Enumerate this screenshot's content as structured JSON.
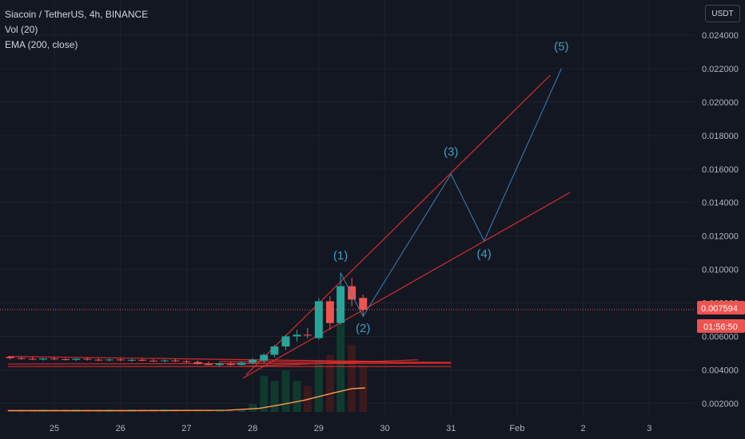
{
  "header": {
    "symbol_line": "Siacoin / TetherUS, 4h, BINANCE",
    "indicator_volume": "Vol (20)",
    "indicator_ema": "EMA (200, close)",
    "currency_button": "USDT"
  },
  "colors": {
    "background": "#131722",
    "grid": "#1e222d",
    "up_candle": "#26a69a",
    "down_candle": "#ef5350",
    "up_volume": "#0f3b2e",
    "down_volume": "#3a1a1d",
    "ema": "#ff9a4d",
    "channel_lines": "#d62c2c",
    "wave_path": "#3e7fb5",
    "wave_labels": "#3e9fbf",
    "price_line": "#ef5350"
  },
  "price_tag": {
    "last_price": "0.007594",
    "countdown": "01:56:50"
  },
  "chart_data": {
    "type": "candlestick",
    "symbol": "Siacoin / TetherUS",
    "timeframe": "4h",
    "exchange": "BINANCE",
    "y_axis": {
      "range": [
        0.0013,
        0.0261
      ],
      "ticks": [
        "0.002000",
        "0.004000",
        "0.006000",
        "0.008000",
        "0.010000",
        "0.012000",
        "0.014000",
        "0.016000",
        "0.018000",
        "0.020000",
        "0.022000",
        "0.024000"
      ],
      "tick_values": [
        0.002,
        0.004,
        0.006,
        0.008,
        0.01,
        0.012,
        0.014,
        0.016,
        0.018,
        0.02,
        0.022,
        0.024
      ]
    },
    "x_axis": {
      "range": [
        24.3,
        29.3
      ],
      "ticks": [
        {
          "t": 25,
          "label": "25"
        },
        {
          "t": 26,
          "label": "26"
        },
        {
          "t": 27,
          "label": "27"
        },
        {
          "t": 28,
          "label": "28"
        },
        {
          "t": 29,
          "label": "29"
        },
        {
          "t": 30,
          "label": "30"
        },
        {
          "t": 31,
          "label": "31"
        },
        {
          "t": 32,
          "label": "Feb"
        },
        {
          "t": 33,
          "label": "2"
        },
        {
          "t": 34,
          "label": "3"
        }
      ]
    },
    "candles": [
      {
        "t": 24.33,
        "o": 0.00478,
        "h": 0.0048,
        "l": 0.00462,
        "c": 0.0047
      },
      {
        "t": 24.5,
        "o": 0.0047,
        "h": 0.0048,
        "l": 0.0046,
        "c": 0.00466
      },
      {
        "t": 24.67,
        "o": 0.00466,
        "h": 0.00478,
        "l": 0.00458,
        "c": 0.00462
      },
      {
        "t": 24.83,
        "o": 0.00462,
        "h": 0.00472,
        "l": 0.00456,
        "c": 0.00468
      },
      {
        "t": 25.0,
        "o": 0.00468,
        "h": 0.00478,
        "l": 0.00458,
        "c": 0.00464
      },
      {
        "t": 25.17,
        "o": 0.00464,
        "h": 0.00472,
        "l": 0.00455,
        "c": 0.0046
      },
      {
        "t": 25.33,
        "o": 0.0046,
        "h": 0.0047,
        "l": 0.00452,
        "c": 0.00466
      },
      {
        "t": 25.5,
        "o": 0.00466,
        "h": 0.00474,
        "l": 0.00456,
        "c": 0.00461
      },
      {
        "t": 25.67,
        "o": 0.00461,
        "h": 0.0047,
        "l": 0.00452,
        "c": 0.00458
      },
      {
        "t": 25.83,
        "o": 0.00458,
        "h": 0.00468,
        "l": 0.0045,
        "c": 0.00462
      },
      {
        "t": 26.0,
        "o": 0.00462,
        "h": 0.0047,
        "l": 0.00452,
        "c": 0.00457
      },
      {
        "t": 26.17,
        "o": 0.00457,
        "h": 0.00466,
        "l": 0.00448,
        "c": 0.0046
      },
      {
        "t": 26.33,
        "o": 0.0046,
        "h": 0.00468,
        "l": 0.0045,
        "c": 0.00455
      },
      {
        "t": 26.5,
        "o": 0.00455,
        "h": 0.00464,
        "l": 0.00446,
        "c": 0.00452
      },
      {
        "t": 26.67,
        "o": 0.00452,
        "h": 0.00462,
        "l": 0.00444,
        "c": 0.00456
      },
      {
        "t": 26.83,
        "o": 0.00456,
        "h": 0.00464,
        "l": 0.00446,
        "c": 0.00451
      },
      {
        "t": 27.0,
        "o": 0.00451,
        "h": 0.0046,
        "l": 0.0044,
        "c": 0.00447
      },
      {
        "t": 27.17,
        "o": 0.00447,
        "h": 0.00456,
        "l": 0.0043,
        "c": 0.00436
      },
      {
        "t": 27.33,
        "o": 0.00436,
        "h": 0.0045,
        "l": 0.00428,
        "c": 0.00429
      },
      {
        "t": 27.5,
        "o": 0.00429,
        "h": 0.00446,
        "l": 0.00422,
        "c": 0.00438
      },
      {
        "t": 27.67,
        "o": 0.00438,
        "h": 0.00448,
        "l": 0.00424,
        "c": 0.0043
      },
      {
        "t": 27.83,
        "o": 0.0043,
        "h": 0.0045,
        "l": 0.00426,
        "c": 0.00442
      },
      {
        "t": 28.0,
        "o": 0.00442,
        "h": 0.0047,
        "l": 0.00432,
        "c": 0.0046
      },
      {
        "t": 28.17,
        "o": 0.00455,
        "h": 0.005,
        "l": 0.0044,
        "c": 0.0049
      },
      {
        "t": 28.33,
        "o": 0.0049,
        "h": 0.0055,
        "l": 0.00475,
        "c": 0.0054
      },
      {
        "t": 28.5,
        "o": 0.0054,
        "h": 0.0061,
        "l": 0.0052,
        "c": 0.006
      },
      {
        "t": 28.67,
        "o": 0.006,
        "h": 0.0064,
        "l": 0.0057,
        "c": 0.0061
      },
      {
        "t": 28.83,
        "o": 0.0061,
        "h": 0.0065,
        "l": 0.0059,
        "c": 0.00605
      },
      {
        "t": 29.0,
        "o": 0.0059,
        "h": 0.0083,
        "l": 0.0058,
        "c": 0.0081
      },
      {
        "t": 29.17,
        "o": 0.0081,
        "h": 0.0084,
        "l": 0.0064,
        "c": 0.0068
      },
      {
        "t": 29.33,
        "o": 0.0068,
        "h": 0.0098,
        "l": 0.0067,
        "c": 0.009
      },
      {
        "t": 29.5,
        "o": 0.009,
        "h": 0.0095,
        "l": 0.0078,
        "c": 0.0082
      },
      {
        "t": 29.67,
        "o": 0.0083,
        "h": 0.0085,
        "l": 0.0072,
        "c": 0.00759
      }
    ],
    "volume": [
      1,
      1,
      1,
      1,
      1,
      1,
      1,
      1,
      1,
      1,
      1,
      1,
      1,
      1,
      1,
      1,
      1,
      1,
      1,
      1,
      1,
      1,
      3,
      14,
      12,
      16,
      12,
      10,
      20,
      22,
      34,
      26,
      18
    ],
    "ema_200": [
      {
        "t": 24.3,
        "v": 0.00156
      },
      {
        "t": 26.0,
        "v": 0.00156
      },
      {
        "t": 27.6,
        "v": 0.00158
      },
      {
        "t": 28.1,
        "v": 0.0017
      },
      {
        "t": 28.4,
        "v": 0.0019
      },
      {
        "t": 28.8,
        "v": 0.0022
      },
      {
        "t": 29.2,
        "v": 0.0026
      },
      {
        "t": 29.5,
        "v": 0.00288
      },
      {
        "t": 29.7,
        "v": 0.00292
      }
    ],
    "trend_lines": [
      {
        "from": {
          "t": 27.9,
          "v": 0.0037
        },
        "to": {
          "t": 32.5,
          "v": 0.0216
        }
      },
      {
        "from": {
          "t": 27.85,
          "v": 0.0035
        },
        "to": {
          "t": 32.8,
          "v": 0.0146
        }
      },
      {
        "from": {
          "t": 24.3,
          "v": 0.0048
        },
        "to": {
          "t": 30.0,
          "v": 0.0045
        }
      },
      {
        "from": {
          "t": 24.3,
          "v": 0.00435
        },
        "to": {
          "t": 31.0,
          "v": 0.0044
        }
      },
      {
        "from": {
          "t": 24.3,
          "v": 0.0042
        },
        "to": {
          "t": 31.0,
          "v": 0.0042
        }
      },
      {
        "from": {
          "t": 27.8,
          "v": 0.0042
        },
        "to": {
          "t": 30.5,
          "v": 0.0046
        }
      },
      {
        "from": {
          "t": 27.5,
          "v": 0.0045
        },
        "to": {
          "t": 31.0,
          "v": 0.00445
        }
      }
    ],
    "wave_path": [
      {
        "t": 29.33,
        "v": 0.0098
      },
      {
        "t": 29.67,
        "v": 0.0072
      },
      {
        "t": 31.0,
        "v": 0.0157
      },
      {
        "t": 31.5,
        "v": 0.0117
      },
      {
        "t": 32.67,
        "v": 0.022
      }
    ],
    "wave_labels": [
      {
        "label": "(1)",
        "t": 29.33,
        "v": 0.0106
      },
      {
        "label": "(2)",
        "t": 29.67,
        "v": 0.00625
      },
      {
        "label": "(3)",
        "t": 31.0,
        "v": 0.0168
      },
      {
        "label": "(4)",
        "t": 31.5,
        "v": 0.0107
      },
      {
        "label": "(5)",
        "t": 32.67,
        "v": 0.0231
      }
    ],
    "last_price": 0.007594
  }
}
